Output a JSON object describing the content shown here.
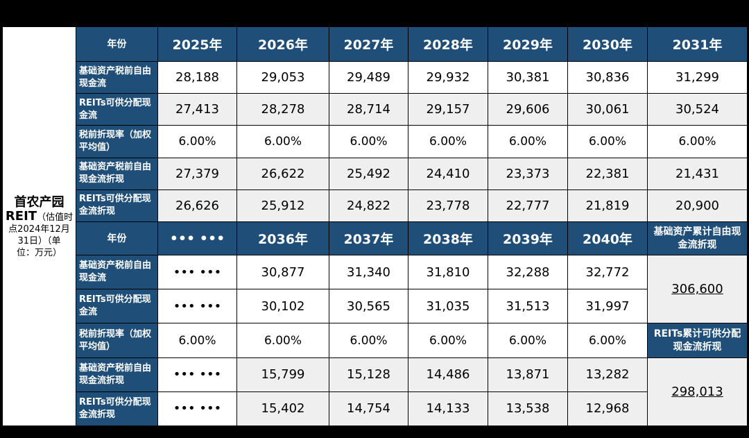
{
  "entity": {
    "line1": "首农产园",
    "line2_bold": "REIT",
    "line2_rest": "（估值时",
    "line3": "点2024年12月",
    "line4": "31日）（单",
    "line5": "位：万元）"
  },
  "labels": {
    "year": "年份",
    "pre_tax_fcf": "基础资产税前自由现金流",
    "distributable": "REITs可供分配现金流",
    "discount_rate": "税前折现率（加权平均值）",
    "pre_tax_fcf_disc": "基础资产税前自由现金流折现",
    "distributable_disc": "REITs可供分配现金流折现"
  },
  "top": {
    "years": [
      "2025年",
      "2026年",
      "2027年",
      "2028年",
      "2029年",
      "2030年",
      "2031年"
    ],
    "pre_tax_fcf": [
      "28,188",
      "29,053",
      "29,489",
      "29,932",
      "30,381",
      "30,836",
      "31,299"
    ],
    "distributable": [
      "27,413",
      "28,278",
      "28,714",
      "29,157",
      "29,606",
      "30,061",
      "30,524"
    ],
    "discount_rate": [
      "6.00%",
      "6.00%",
      "6.00%",
      "6.00%",
      "6.00%",
      "6.00%",
      "6.00%"
    ],
    "pre_tax_fcf_disc": [
      "27,379",
      "26,622",
      "25,492",
      "24,410",
      "23,373",
      "22,381",
      "21,431"
    ],
    "distributable_disc": [
      "26,626",
      "25,912",
      "24,822",
      "23,778",
      "22,777",
      "21,819",
      "20,900"
    ]
  },
  "bottom": {
    "years": [
      "••• •••",
      "2036年",
      "2037年",
      "2038年",
      "2039年",
      "2040年"
    ],
    "pre_tax_fcf": [
      "••• •••",
      "30,877",
      "31,340",
      "31,810",
      "32,288",
      "32,772"
    ],
    "distributable": [
      "••• •••",
      "30,102",
      "30,565",
      "31,035",
      "31,513",
      "31,997"
    ],
    "discount_rate": [
      "6.00%",
      "6.00%",
      "6.00%",
      "6.00%",
      "6.00%",
      "6.00%"
    ],
    "pre_tax_fcf_disc": [
      "••• •••",
      "15,799",
      "15,128",
      "14,486",
      "13,871",
      "13,282"
    ],
    "distributable_disc": [
      "••• •••",
      "15,402",
      "14,754",
      "14,133",
      "13,538",
      "12,968"
    ],
    "cum_fcf_label": "基础资产累计自由现金流折现",
    "cum_fcf_value": "306,600",
    "cum_dist_label": "REITs累计可供分配现金流折现",
    "cum_dist_value": "298,013"
  },
  "colors": {
    "header_blue": "#1f4e79",
    "grey_row": "#efefef"
  }
}
